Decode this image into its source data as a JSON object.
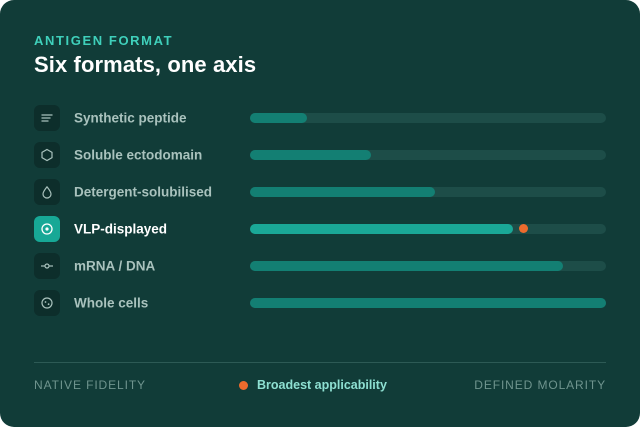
{
  "header": {
    "eyebrow": "ANTIGEN FORMAT",
    "title": "Six formats, one axis"
  },
  "colors": {
    "background": "#113c38",
    "accent": "#3fd0bb",
    "highlight_marker": "#ec6b2d",
    "track": "#1d4d48",
    "fill": "#137f73",
    "active_fill": "#1aa897"
  },
  "formats": [
    {
      "label": "Synthetic peptide",
      "icon": "lines-icon",
      "level": 0.16,
      "active": false
    },
    {
      "label": "Soluble ectodomain",
      "icon": "hexagon-icon",
      "level": 0.34,
      "active": false
    },
    {
      "label": "Detergent-solubilised",
      "icon": "droplet-icon",
      "level": 0.52,
      "active": false
    },
    {
      "label": "VLP-displayed",
      "icon": "target-circle-icon",
      "level": 0.74,
      "active": true,
      "marker_level": 0.768
    },
    {
      "label": "mRNA / DNA",
      "icon": "node-line-icon",
      "level": 0.88,
      "active": false
    },
    {
      "label": "Whole cells",
      "icon": "cell-icon",
      "level": 1.0,
      "active": false
    }
  ],
  "footer": {
    "left": "NATIVE FIDELITY",
    "middle": "Broadest applicability",
    "right": "DEFINED MOLARITY"
  }
}
